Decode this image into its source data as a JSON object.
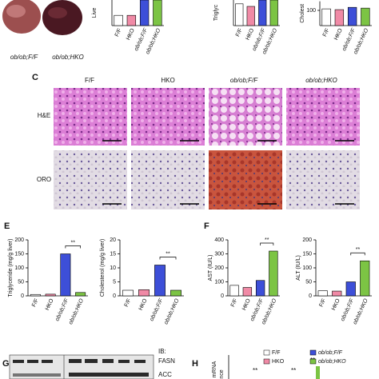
{
  "photo_labels": [
    "ob/ob;F/F",
    "ob/ob;HKO"
  ],
  "panel_c": {
    "label": "C",
    "columns": [
      "F/F",
      "HKO",
      "ob/ob;F/F",
      "ob/ob;HKO"
    ],
    "rows": [
      "H&E",
      "ORO"
    ]
  },
  "panel_e": {
    "label": "E"
  },
  "panel_f": {
    "label": "F"
  },
  "panel_g": {
    "label": "G",
    "ib": "IB:",
    "proteins": [
      "FASN",
      "ACC"
    ]
  },
  "panel_h": {
    "label": "H",
    "y_label": [
      "mRNA",
      "nce"
    ],
    "legend": [
      {
        "name": "F/F",
        "color": "#ffffff"
      },
      {
        "name": "ob/ob;F/F",
        "color": "#3d4fd8"
      },
      {
        "name": "HKO",
        "color": "#f08aa6"
      },
      {
        "name": "ob/ob;HKO",
        "color": "#7cc444"
      }
    ],
    "annotations": [
      "**",
      "**",
      "**"
    ]
  },
  "chart_data": [
    {
      "type": "bar",
      "y_label": "Live",
      "categories": [
        "F/F",
        "HKO",
        "ob/ob;F/F",
        "ob/ob;HKO"
      ],
      "values": [
        40,
        40,
        100,
        100
      ],
      "colors": [
        "#ffffff",
        "#f08aa6",
        "#3d4fd8",
        "#7cc444"
      ],
      "ylim": [
        0,
        100
      ],
      "yticks": []
    },
    {
      "type": "bar",
      "y_label": "Triglyc",
      "categories": [
        "F/F",
        "HKO",
        "ob/ob;F/F",
        "ob/ob;HKO"
      ],
      "values": [
        85,
        75,
        100,
        100
      ],
      "colors": [
        "#ffffff",
        "#f08aa6",
        "#3d4fd8",
        "#7cc444"
      ],
      "ylim": [
        0,
        100
      ],
      "yticks": []
    },
    {
      "type": "bar",
      "y_label": "Cholest",
      "categories": [
        "F/F",
        "HKO",
        "ob/ob;F/F",
        "ob/ob;HKO"
      ],
      "values": [
        110,
        105,
        120,
        115
      ],
      "colors": [
        "#ffffff",
        "#f08aa6",
        "#3d4fd8",
        "#7cc444"
      ],
      "ylim": [
        0,
        160
      ],
      "yticks": [
        100
      ]
    },
    {
      "type": "bar",
      "y_label": "Triglyceride (mg/g liver)",
      "categories": [
        "F/F",
        "HKO",
        "ob/ob;F/F",
        "ob/ob;HKO"
      ],
      "values": [
        5,
        6,
        150,
        12
      ],
      "colors": [
        "#ffffff",
        "#f08aa6",
        "#3d4fd8",
        "#7cc444"
      ],
      "ylim": [
        0,
        200
      ],
      "yticks": [
        0,
        50,
        100,
        150,
        200
      ],
      "annotation": "**"
    },
    {
      "type": "bar",
      "y_label": "Cholesterol (mg/g liver)",
      "categories": [
        "F/F",
        "HKO",
        "ob/ob;F/F",
        "ob/ob;HKO"
      ],
      "values": [
        2,
        2.2,
        11,
        2
      ],
      "colors": [
        "#ffffff",
        "#f08aa6",
        "#3d4fd8",
        "#7cc444"
      ],
      "ylim": [
        0,
        20
      ],
      "yticks": [
        0,
        5,
        10,
        15,
        20
      ],
      "annotation": "**"
    },
    {
      "type": "bar",
      "y_label": "AST (IU/L)",
      "categories": [
        "F/F",
        "HKO",
        "ob/ob;F/F",
        "ob/ob;HKO"
      ],
      "values": [
        75,
        60,
        110,
        320
      ],
      "colors": [
        "#ffffff",
        "#f08aa6",
        "#3d4fd8",
        "#7cc444"
      ],
      "ylim": [
        0,
        400
      ],
      "yticks": [
        0,
        100,
        200,
        300,
        400
      ],
      "annotation": "**"
    },
    {
      "type": "bar",
      "y_label": "ALT (IU/L)",
      "categories": [
        "F/F",
        "HKO",
        "ob/ob;F/F",
        "ob/ob;HKO"
      ],
      "values": [
        18,
        17,
        50,
        125
      ],
      "colors": [
        "#ffffff",
        "#f08aa6",
        "#3d4fd8",
        "#7cc444"
      ],
      "ylim": [
        0,
        200
      ],
      "yticks": [
        0,
        50,
        100,
        150,
        200
      ],
      "annotation": "**"
    }
  ]
}
